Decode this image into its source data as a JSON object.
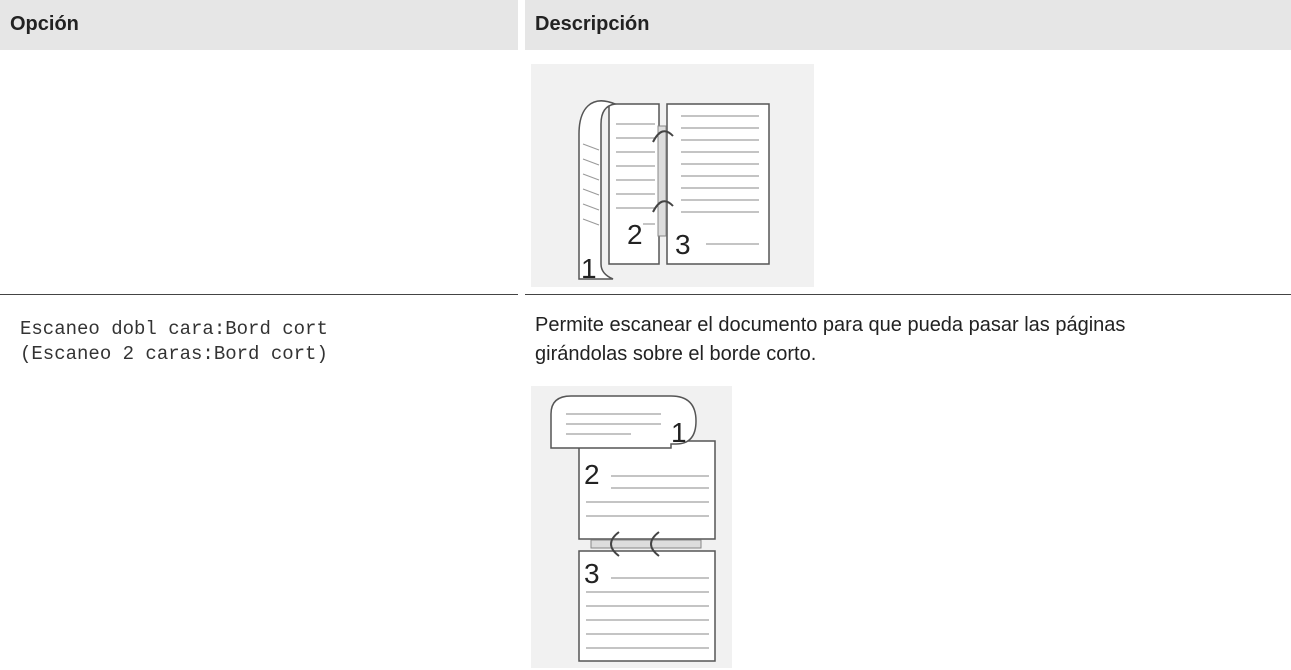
{
  "table": {
    "columns": [
      "Opción",
      "Descripción"
    ],
    "rows": [
      {
        "illustration": [
          "2",
          "3",
          "1"
        ]
      },
      {
        "option": [
          "Escaneo dobl cara:Bord cort",
          "(Escaneo 2 caras:Bord cort)"
        ],
        "description": "Permite escanear el documento para que pueda pasar las páginas girándolas sobre el borde corto.",
        "illustration": [
          "1",
          "2",
          "3"
        ]
      }
    ]
  }
}
